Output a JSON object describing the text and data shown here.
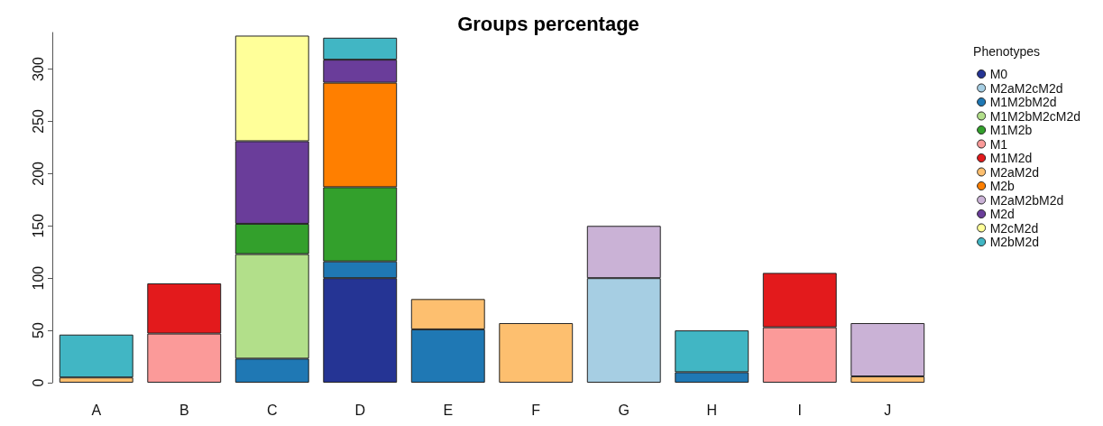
{
  "chart_data": {
    "type": "bar",
    "title": "Groups percentage",
    "legend_title": "Phenotypes",
    "stacked": true,
    "legend": "top right",
    "grid": false,
    "categories": [
      "A",
      "B",
      "C",
      "D",
      "E",
      "F",
      "G",
      "H",
      "I",
      "J"
    ],
    "ylim": [
      0,
      335
    ],
    "yticks": [
      0,
      50,
      100,
      150,
      200,
      250,
      300
    ],
    "series": [
      {
        "name": "M0",
        "color": "#253494",
        "values": [
          null,
          null,
          null,
          100,
          null,
          null,
          null,
          null,
          null,
          null
        ]
      },
      {
        "name": "M2aM2cM2d",
        "color": "#a6cee3",
        "values": [
          null,
          null,
          null,
          null,
          null,
          null,
          100,
          null,
          null,
          null
        ]
      },
      {
        "name": "M1M2bM2d",
        "color": "#1f78b4",
        "values": [
          null,
          null,
          23,
          16,
          51,
          null,
          null,
          10,
          null,
          null
        ]
      },
      {
        "name": "M1M2bM2cM2d",
        "color": "#b2df8a",
        "values": [
          null,
          null,
          100,
          null,
          null,
          null,
          null,
          null,
          null,
          null
        ]
      },
      {
        "name": "M1M2b",
        "color": "#33a02c",
        "values": [
          null,
          null,
          29,
          71,
          null,
          null,
          null,
          null,
          null,
          null
        ]
      },
      {
        "name": "M1",
        "color": "#fb9a99",
        "values": [
          null,
          47,
          null,
          null,
          null,
          null,
          null,
          null,
          53,
          null
        ]
      },
      {
        "name": "M1M2d",
        "color": "#e31a1c",
        "values": [
          null,
          48,
          null,
          null,
          null,
          null,
          null,
          null,
          52,
          null
        ]
      },
      {
        "name": "M2aM2d",
        "color": "#fdbf6f",
        "values": [
          5,
          null,
          null,
          null,
          29,
          57,
          null,
          null,
          null,
          6
        ]
      },
      {
        "name": "M2b",
        "color": "#ff7f00",
        "values": [
          null,
          null,
          null,
          100,
          null,
          null,
          null,
          null,
          null,
          null
        ]
      },
      {
        "name": "M2aM2bM2d",
        "color": "#cab2d6",
        "values": [
          null,
          null,
          null,
          null,
          null,
          null,
          50,
          null,
          null,
          51
        ]
      },
      {
        "name": "M2d",
        "color": "#6a3d9a",
        "values": [
          null,
          null,
          79,
          22,
          null,
          null,
          null,
          null,
          null,
          null
        ]
      },
      {
        "name": "M2cM2d",
        "color": "#ffff99",
        "values": [
          null,
          null,
          101,
          null,
          null,
          null,
          null,
          null,
          null,
          null
        ]
      },
      {
        "name": "M2bM2d",
        "color": "#41b6c4",
        "values": [
          41,
          null,
          null,
          21,
          null,
          null,
          null,
          40,
          null,
          null
        ]
      }
    ]
  }
}
